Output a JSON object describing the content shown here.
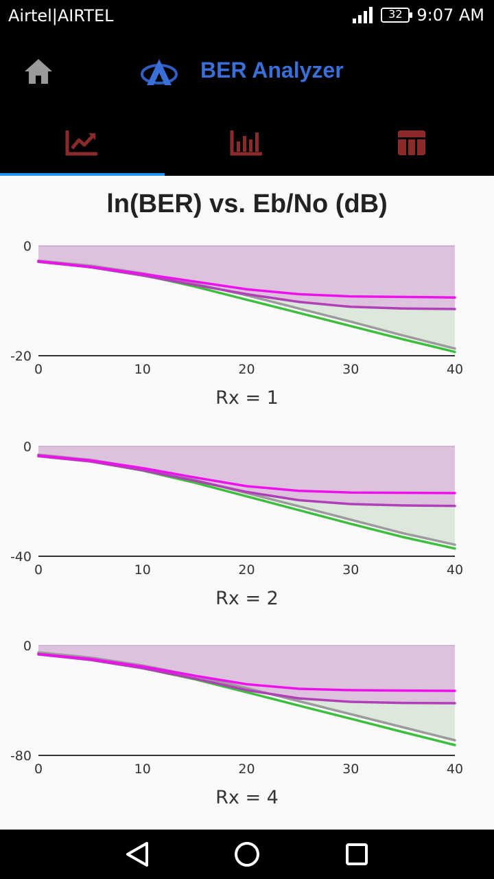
{
  "status_bar": {
    "carrier": "Airtel|AIRTEL",
    "battery": "32",
    "time": "9:07 AM"
  },
  "app_bar": {
    "title": "BER Analyzer"
  },
  "icons": {
    "home": "home-icon",
    "logo": "app-logo-icon",
    "tab_line": "line-chart-icon",
    "tab_bar": "bar-chart-icon",
    "tab_table": "table-icon",
    "nav_back": "back-triangle-icon",
    "nav_home": "home-circle-icon",
    "nav_recents": "recents-square-icon"
  },
  "colors": {
    "accent": "#2196f3",
    "title_blue": "#3a6fd8",
    "tab_icon": "#8b2a2a"
  },
  "page_title": "ln(BER) vs. Eb/No (dB)",
  "chart_data": [
    {
      "type": "line",
      "label": "Rx = 1",
      "xlim": [
        0,
        40
      ],
      "ylim": [
        -20,
        0
      ],
      "xticks": [
        0,
        10,
        20,
        30,
        40
      ],
      "yticks": [
        0,
        -20
      ],
      "series": [
        {
          "color": "#9b9b9b",
          "x": [
            0,
            5,
            10,
            15,
            20,
            25,
            30,
            35,
            40
          ],
          "y": [
            -2.7,
            -3.6,
            -5.0,
            -6.9,
            -9.0,
            -11.4,
            -13.8,
            -16.3,
            -18.7
          ],
          "fill": "#dde8dd"
        },
        {
          "color": "#3cbf3c",
          "x": [
            0,
            5,
            10,
            15,
            20,
            25,
            30,
            35,
            40
          ],
          "y": [
            -2.9,
            -3.8,
            -5.3,
            -7.4,
            -9.8,
            -12.2,
            -14.6,
            -17.0,
            -19.3
          ]
        },
        {
          "color": "#b040b8",
          "x": [
            0,
            5,
            10,
            15,
            20,
            25,
            30,
            35,
            40
          ],
          "y": [
            -2.9,
            -3.9,
            -5.4,
            -7.1,
            -8.8,
            -10.2,
            -11.1,
            -11.4,
            -11.5
          ],
          "fill": "#dcc2dc"
        },
        {
          "color": "#ee11ee",
          "x": [
            0,
            5,
            10,
            15,
            20,
            25,
            30,
            35,
            40
          ],
          "y": [
            -2.8,
            -3.8,
            -5.1,
            -6.5,
            -7.9,
            -8.8,
            -9.2,
            -9.3,
            -9.4
          ]
        }
      ]
    },
    {
      "type": "line",
      "label": "Rx = 2",
      "xlim": [
        0,
        40
      ],
      "ylim": [
        -40,
        0
      ],
      "xticks": [
        0,
        10,
        20,
        30,
        40
      ],
      "yticks": [
        0,
        -40
      ],
      "series": [
        {
          "color": "#9b9b9b",
          "x": [
            0,
            5,
            10,
            15,
            20,
            25,
            30,
            35,
            40
          ],
          "y": [
            -3.0,
            -4.9,
            -8.0,
            -12.2,
            -17.0,
            -21.8,
            -26.7,
            -31.6,
            -35.8
          ],
          "fill": "#dde8dd"
        },
        {
          "color": "#3cbf3c",
          "x": [
            0,
            5,
            10,
            15,
            20,
            25,
            30,
            35,
            40
          ],
          "y": [
            -3.5,
            -5.4,
            -8.8,
            -13.2,
            -18.2,
            -23.2,
            -28.2,
            -33.0,
            -37.2
          ]
        },
        {
          "color": "#b040b8",
          "x": [
            0,
            5,
            10,
            15,
            20,
            25,
            30,
            35,
            40
          ],
          "y": [
            -3.6,
            -5.5,
            -8.7,
            -12.5,
            -16.6,
            -19.6,
            -21.0,
            -21.5,
            -21.7
          ],
          "fill": "#dcc2dc"
        },
        {
          "color": "#ee11ee",
          "x": [
            0,
            5,
            10,
            15,
            20,
            25,
            30,
            35,
            40
          ],
          "y": [
            -3.3,
            -5.1,
            -7.9,
            -11.3,
            -14.5,
            -16.2,
            -16.8,
            -16.9,
            -17.0
          ]
        }
      ]
    },
    {
      "type": "line",
      "label": "Rx = 4",
      "xlim": [
        0,
        40
      ],
      "ylim": [
        -80,
        0
      ],
      "xticks": [
        0,
        10,
        20,
        30,
        40
      ],
      "yticks": [
        0,
        -80
      ],
      "series": [
        {
          "color": "#9b9b9b",
          "x": [
            0,
            5,
            10,
            15,
            20,
            25,
            30,
            35,
            40
          ],
          "y": [
            -5.0,
            -8.8,
            -14.5,
            -22.0,
            -31.0,
            -40.5,
            -50.0,
            -59.5,
            -69.0
          ],
          "fill": "#dde8dd"
        },
        {
          "color": "#3cbf3c",
          "x": [
            0,
            5,
            10,
            15,
            20,
            25,
            30,
            35,
            40
          ],
          "y": [
            -6.0,
            -10.0,
            -16.5,
            -24.5,
            -34.0,
            -43.7,
            -53.3,
            -63.0,
            -72.5
          ]
        },
        {
          "color": "#b040b8",
          "x": [
            0,
            5,
            10,
            15,
            20,
            25,
            30,
            35,
            40
          ],
          "y": [
            -6.5,
            -10.5,
            -16.5,
            -24.0,
            -32.5,
            -38.5,
            -41.0,
            -41.8,
            -42.0
          ],
          "fill": "#dcc2dc"
        },
        {
          "color": "#ee11ee",
          "x": [
            0,
            5,
            10,
            15,
            20,
            25,
            30,
            35,
            40
          ],
          "y": [
            -6.2,
            -9.8,
            -15.3,
            -22.0,
            -28.2,
            -31.5,
            -32.5,
            -32.8,
            -33.0
          ]
        }
      ]
    }
  ]
}
